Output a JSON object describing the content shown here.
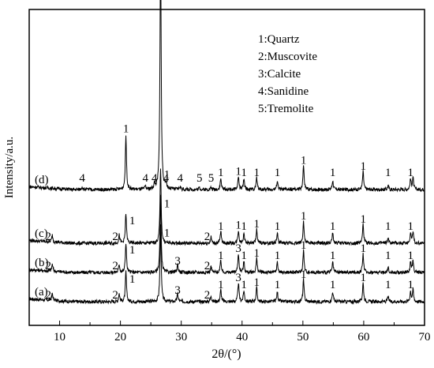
{
  "chart_data": {
    "type": "line",
    "title": "",
    "xlabel": "2θ/(°)",
    "ylabel": "Intensity/a.u.",
    "xlim": [
      5,
      70
    ],
    "xticks": [
      "10",
      "20",
      "30",
      "40",
      "50",
      "60",
      "70"
    ],
    "yticks_shown": false,
    "grid": false,
    "legend": {
      "placement": "top-right",
      "entries": [
        "1:Quartz",
        "2:Muscovite",
        "3:Calcite",
        "4:Sanidine",
        "5:Tremolite"
      ]
    },
    "series": [
      {
        "name": "(a)",
        "label": "(a)",
        "peaks": [
          {
            "x": 8.8,
            "h": 0.7,
            "tag": "2"
          },
          {
            "x": 19.8,
            "h": 0.8,
            "tag": "2"
          },
          {
            "x": 20.9,
            "h": 3.0,
            "tag": "1"
          },
          {
            "x": 26.6,
            "h": 7.6,
            "tag": "1"
          },
          {
            "x": 29.4,
            "h": 0.8,
            "tag": "3"
          },
          {
            "x": 34.9,
            "h": 0.6,
            "tag": "2"
          },
          {
            "x": 36.5,
            "h": 1.2,
            "tag": "1"
          },
          {
            "x": 39.4,
            "h": 1.9,
            "tag": "3"
          },
          {
            "x": 40.3,
            "h": 1.1,
            "tag": "1"
          },
          {
            "x": 42.4,
            "h": 1.4,
            "tag": "1"
          },
          {
            "x": 45.8,
            "h": 1.0,
            "tag": "1"
          },
          {
            "x": 50.1,
            "h": 2.2,
            "tag": "1"
          },
          {
            "x": 54.9,
            "h": 1.0,
            "tag": "1"
          },
          {
            "x": 59.9,
            "h": 1.9,
            "tag": "1"
          },
          {
            "x": 64.0,
            "h": 0.5,
            "tag": "1"
          },
          {
            "x": 67.7,
            "h": 1.0,
            "tag": "1"
          },
          {
            "x": 68.1,
            "h": 1.2,
            "tag": ""
          }
        ]
      },
      {
        "name": "(b)",
        "label": "(b)",
        "peaks": [
          {
            "x": 8.8,
            "h": 0.7,
            "tag": "2"
          },
          {
            "x": 19.8,
            "h": 0.8,
            "tag": "2"
          },
          {
            "x": 20.9,
            "h": 3.0,
            "tag": "1"
          },
          {
            "x": 26.6,
            "h": 7.6,
            "tag": "1"
          },
          {
            "x": 29.4,
            "h": 0.8,
            "tag": "3"
          },
          {
            "x": 34.9,
            "h": 0.6,
            "tag": "2"
          },
          {
            "x": 36.5,
            "h": 1.2,
            "tag": "1"
          },
          {
            "x": 39.4,
            "h": 1.9,
            "tag": "3"
          },
          {
            "x": 40.3,
            "h": 1.1,
            "tag": "1"
          },
          {
            "x": 42.4,
            "h": 1.4,
            "tag": "1"
          },
          {
            "x": 45.8,
            "h": 1.0,
            "tag": "1"
          },
          {
            "x": 50.1,
            "h": 2.2,
            "tag": "1"
          },
          {
            "x": 54.9,
            "h": 1.0,
            "tag": "1"
          },
          {
            "x": 59.9,
            "h": 1.9,
            "tag": "1"
          },
          {
            "x": 64.0,
            "h": 0.5,
            "tag": "1"
          },
          {
            "x": 67.7,
            "h": 1.0,
            "tag": "1"
          },
          {
            "x": 68.1,
            "h": 1.2,
            "tag": ""
          }
        ]
      },
      {
        "name": "(c)",
        "label": "(c)",
        "peaks": [
          {
            "x": 8.8,
            "h": 0.7,
            "tag": "2"
          },
          {
            "x": 19.8,
            "h": 0.8,
            "tag": "2"
          },
          {
            "x": 20.9,
            "h": 3.0,
            "tag": "1"
          },
          {
            "x": 26.6,
            "h": 7.6,
            "tag": "1"
          },
          {
            "x": 34.9,
            "h": 0.6,
            "tag": "2"
          },
          {
            "x": 36.5,
            "h": 1.2,
            "tag": "1"
          },
          {
            "x": 39.4,
            "h": 1.3,
            "tag": "1"
          },
          {
            "x": 40.3,
            "h": 1.1,
            "tag": "1"
          },
          {
            "x": 42.4,
            "h": 1.4,
            "tag": "1"
          },
          {
            "x": 45.8,
            "h": 1.0,
            "tag": "1"
          },
          {
            "x": 50.1,
            "h": 2.2,
            "tag": "1"
          },
          {
            "x": 54.9,
            "h": 1.0,
            "tag": "1"
          },
          {
            "x": 59.9,
            "h": 1.9,
            "tag": "1"
          },
          {
            "x": 64.0,
            "h": 0.5,
            "tag": "1"
          },
          {
            "x": 67.7,
            "h": 1.0,
            "tag": "1"
          },
          {
            "x": 68.1,
            "h": 1.2,
            "tag": ""
          }
        ]
      },
      {
        "name": "(d)",
        "label": "(d)",
        "peaks": [
          {
            "x": 13.7,
            "h": 0.3,
            "tag": "4"
          },
          {
            "x": 20.9,
            "h": 5.4,
            "tag": "1"
          },
          {
            "x": 24.1,
            "h": 0.3,
            "tag": "4"
          },
          {
            "x": 25.6,
            "h": 0.5,
            "tag": "4"
          },
          {
            "x": 26.6,
            "h": 25.0,
            "tag": "1"
          },
          {
            "x": 27.5,
            "h": 0.6,
            "tag": "4"
          },
          {
            "x": 29.8,
            "h": 0.3,
            "tag": "4"
          },
          {
            "x": 33.0,
            "h": 0.2,
            "tag": "5"
          },
          {
            "x": 34.9,
            "h": 0.2,
            "tag": "5"
          },
          {
            "x": 36.5,
            "h": 1.1,
            "tag": "1"
          },
          {
            "x": 39.4,
            "h": 1.3,
            "tag": "1"
          },
          {
            "x": 40.3,
            "h": 1.0,
            "tag": "1"
          },
          {
            "x": 42.4,
            "h": 1.2,
            "tag": "1"
          },
          {
            "x": 45.8,
            "h": 0.9,
            "tag": "1"
          },
          {
            "x": 50.1,
            "h": 2.4,
            "tag": "1"
          },
          {
            "x": 54.9,
            "h": 0.9,
            "tag": "1"
          },
          {
            "x": 59.9,
            "h": 1.8,
            "tag": "1"
          },
          {
            "x": 64.0,
            "h": 0.4,
            "tag": "1"
          },
          {
            "x": 67.7,
            "h": 1.0,
            "tag": "1"
          },
          {
            "x": 68.1,
            "h": 1.2,
            "tag": ""
          }
        ]
      }
    ]
  }
}
